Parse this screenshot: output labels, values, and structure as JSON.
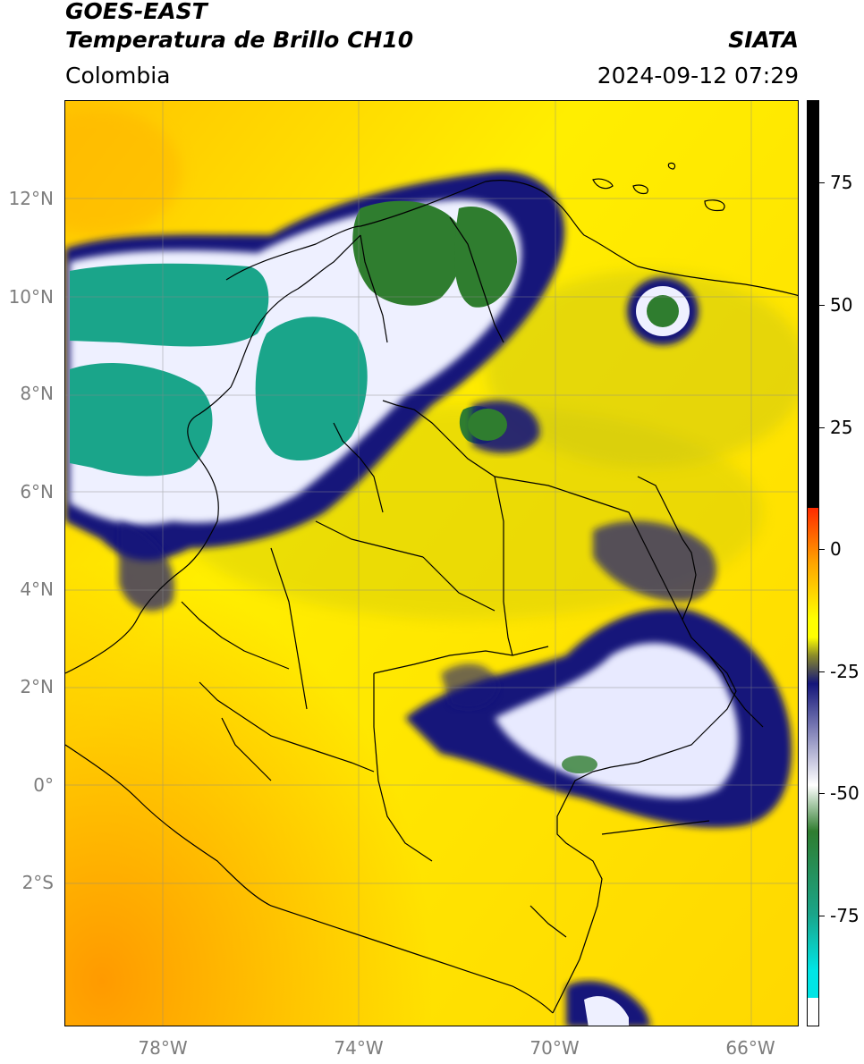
{
  "header": {
    "title_line1": "GOES-EAST",
    "title_line2": "Temperatura de Brillo CH10",
    "org": "SIATA",
    "region": "Colombia",
    "datetime": "2024-09-12 07:29"
  },
  "map": {
    "lat_labels": [
      "12°N",
      "10°N",
      "8°N",
      "6°N",
      "4°N",
      "2°N",
      "0°",
      "2°S"
    ],
    "lon_labels": [
      "78°W",
      "74°W",
      "70°W",
      "66°W"
    ],
    "background_color": "#ffee00",
    "cloud_palette": [
      "#1a237e",
      "#f5f5ff",
      "#2e7d32",
      "#1aa58a",
      "#00e5e5"
    ]
  },
  "colorbar": {
    "ticks": [
      "75",
      "50",
      "25",
      "0",
      "-25",
      "-50",
      "-75"
    ],
    "colors": {
      "black": "#000000",
      "red": "#ff2a00",
      "orange": "#ffa500",
      "yellow": "#ffff00",
      "olive": "#8a8a2a",
      "navy": "#14167a",
      "white": "#ffffff",
      "green": "#2f7d2f",
      "teal": "#1aa58a",
      "cyan": "#00e5e5"
    }
  }
}
